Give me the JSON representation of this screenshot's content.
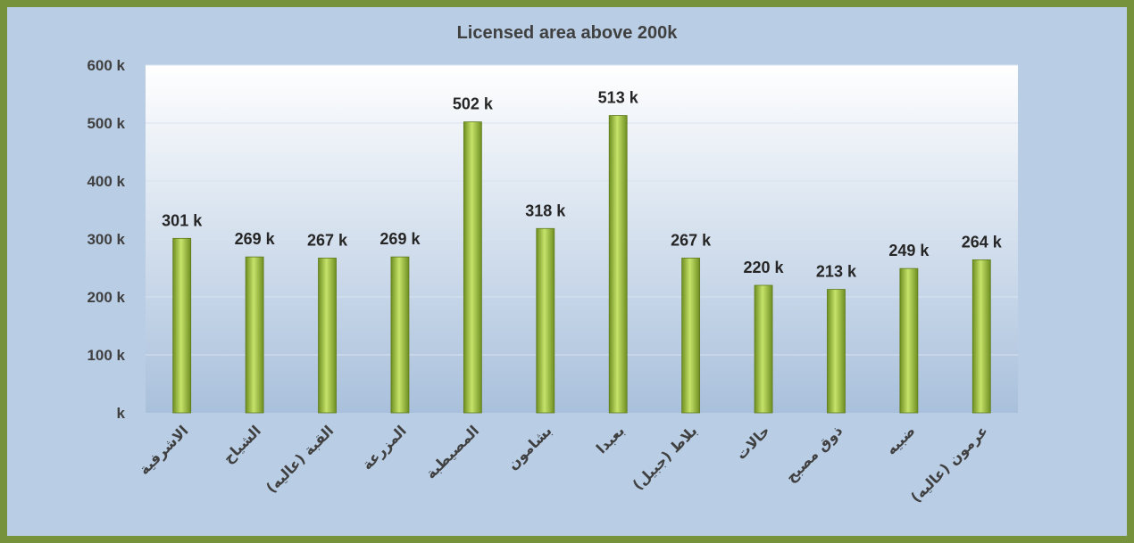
{
  "chart_data": {
    "type": "bar",
    "title": "Licensed area above 200k",
    "categories": [
      "الاشرفية",
      "الشياح",
      "القبة (عاليه)",
      "المزرعة",
      "المصيطبة",
      "بشامون",
      "بعبدا",
      "بلاط (جبيل)",
      "حالات",
      "ذوق مصبح",
      "ضبيه",
      "عرمون (عاليه)"
    ],
    "values": [
      301,
      269,
      267,
      269,
      502,
      318,
      513,
      267,
      220,
      213,
      249,
      264
    ],
    "data_labels": [
      "301 k",
      "269 k",
      "267 k",
      "269 k",
      "502 k",
      "318 k",
      "513 k",
      "267 k",
      "220 k",
      "213 k",
      "249 k",
      "264 k"
    ],
    "ylim": [
      0,
      600
    ],
    "yticks": [
      0,
      100,
      200,
      300,
      400,
      500,
      600
    ],
    "ytick_labels": [
      "k",
      "100 k",
      "200 k",
      "300 k",
      "400 k",
      "500 k",
      "600 k"
    ],
    "grid": true,
    "legend": "none",
    "colors": {
      "bar_light": "#c6e36a",
      "bar_dark": "#6e8e21",
      "plot_top": "#ffffff",
      "plot_bottom": "#a9c0dc",
      "outer_background": "#b9cde5",
      "border": "#76933c"
    }
  }
}
